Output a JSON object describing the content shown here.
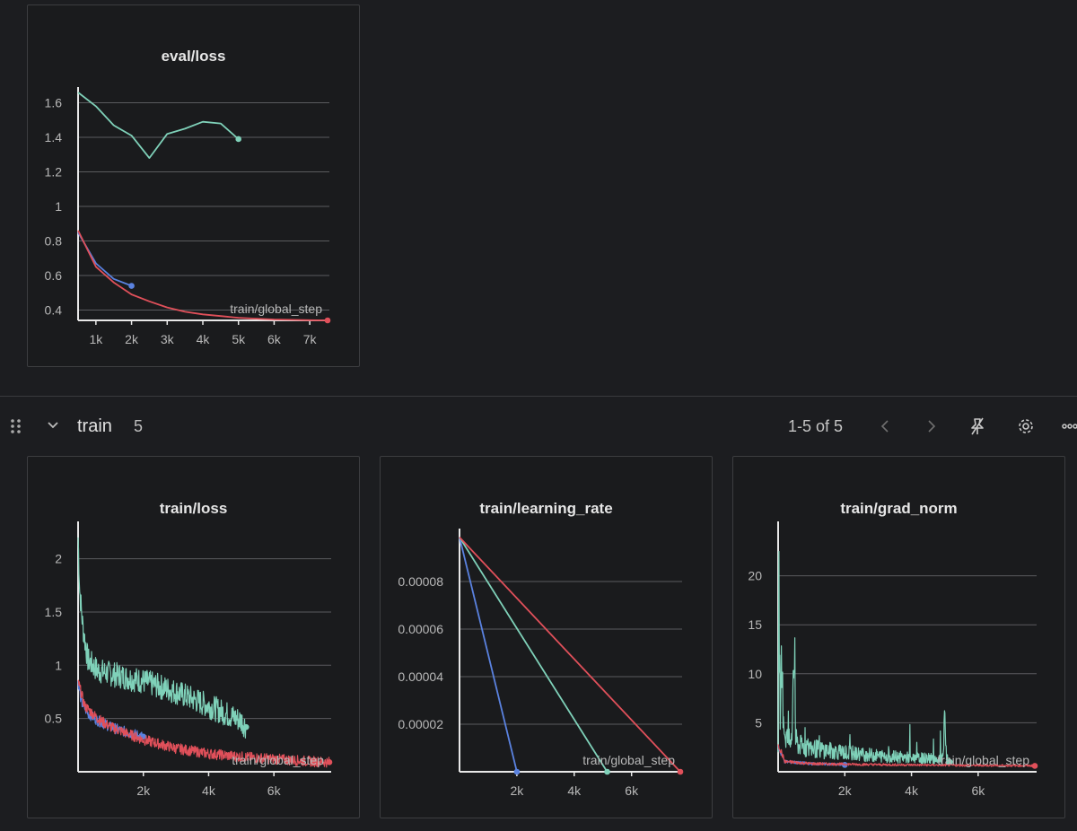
{
  "section": {
    "title": "train",
    "count": "5",
    "pagination": "1-5 of 5"
  },
  "colors": {
    "teal": "#7fd1b9",
    "blue": "#5a82e0",
    "red": "#e0505a"
  },
  "icons": [
    "drag-handle-icon",
    "chevron-down-icon",
    "chevron-left-icon",
    "chevron-right-icon",
    "pin-icon",
    "gear-icon",
    "more-icon"
  ],
  "chart_data": [
    {
      "type": "line",
      "title": "eval/loss",
      "xlabel": "train/global_step",
      "xlim": [
        500,
        7500
      ],
      "ylim": [
        0.34,
        1.66
      ],
      "xticks": [
        "1k",
        "2k",
        "3k",
        "4k",
        "5k",
        "6k",
        "7k"
      ],
      "yticks": [
        "0.4",
        "0.6",
        "0.8",
        "1",
        "1.2",
        "1.4",
        "1.6"
      ],
      "series": [
        {
          "color": "#7fd1b9",
          "x": [
            500,
            1000,
            1500,
            2000,
            2500,
            3000,
            3500,
            4000,
            4500,
            5000
          ],
          "y": [
            1.66,
            1.58,
            1.47,
            1.41,
            1.28,
            1.42,
            1.45,
            1.49,
            1.48,
            1.39
          ]
        },
        {
          "color": "#5a82e0",
          "x": [
            500,
            1000,
            1500,
            2000
          ],
          "y": [
            0.85,
            0.67,
            0.58,
            0.54
          ]
        },
        {
          "color": "#e0505a",
          "x": [
            500,
            1000,
            1500,
            2000,
            2500,
            3000,
            3500,
            4000,
            4500,
            5000,
            5500,
            6000,
            6500,
            7000,
            7500
          ],
          "y": [
            0.86,
            0.65,
            0.56,
            0.49,
            0.45,
            0.415,
            0.39,
            0.375,
            0.365,
            0.355,
            0.35,
            0.345,
            0.343,
            0.341,
            0.34
          ]
        }
      ]
    },
    {
      "type": "line",
      "title": "train/loss",
      "xlabel": "train/global_step",
      "xlim": [
        0,
        7700
      ],
      "ylim": [
        0,
        2.3
      ],
      "xticks": [
        "2k",
        "4k",
        "6k"
      ],
      "yticks": [
        "0.5",
        "1",
        "1.5",
        "2"
      ],
      "series": [
        {
          "color": "#7fd1b9",
          "x": [
            0,
            50,
            150,
            300,
            600,
            1000,
            2000,
            3000,
            4000,
            5000,
            5150
          ],
          "y": [
            2.2,
            1.7,
            1.35,
            1.05,
            0.95,
            0.92,
            0.85,
            0.75,
            0.62,
            0.48,
            0.42
          ]
        },
        {
          "color": "#5a82e0",
          "x": [
            0,
            100,
            300,
            600,
            1000,
            1500,
            2000
          ],
          "y": [
            0.85,
            0.65,
            0.55,
            0.48,
            0.42,
            0.37,
            0.33
          ]
        },
        {
          "color": "#e0505a",
          "x": [
            0,
            200,
            600,
            1000,
            2000,
            3000,
            4000,
            5000,
            6000,
            7000,
            7700
          ],
          "y": [
            0.85,
            0.62,
            0.5,
            0.42,
            0.3,
            0.22,
            0.17,
            0.14,
            0.12,
            0.1,
            0.09
          ]
        }
      ]
    },
    {
      "type": "line",
      "title": "train/learning_rate",
      "xlabel": "train/global_step",
      "xlim": [
        0,
        7700
      ],
      "ylim": [
        0,
        0.0001
      ],
      "xticks": [
        "2k",
        "4k",
        "6k"
      ],
      "yticks": [
        "0.00002",
        "0.00004",
        "0.00006",
        "0.00008"
      ],
      "series": [
        {
          "color": "#5a82e0",
          "x": [
            0,
            2000
          ],
          "y": [
            9.86e-05,
            0
          ]
        },
        {
          "color": "#7fd1b9",
          "x": [
            0,
            5150
          ],
          "y": [
            9.86e-05,
            0
          ]
        },
        {
          "color": "#e0505a",
          "x": [
            0,
            7700
          ],
          "y": [
            9.86e-05,
            0
          ]
        }
      ]
    },
    {
      "type": "line",
      "title": "train/grad_norm",
      "xlabel": "train/global_step",
      "xlim": [
        0,
        7700
      ],
      "ylim": [
        0,
        25
      ],
      "xticks": [
        "2k",
        "4k",
        "6k"
      ],
      "yticks": [
        "5",
        "10",
        "15",
        "20"
      ],
      "series": [
        {
          "color": "#7fd1b9",
          "x": [
            0,
            20,
            60,
            100,
            200,
            400,
            500,
            520,
            600,
            1000,
            2000,
            3000,
            4000,
            4950,
            5000,
            5050,
            5150
          ],
          "y": [
            2.0,
            24.0,
            3.0,
            9.0,
            3.5,
            2.5,
            12.5,
            3.0,
            2.5,
            2.2,
            1.8,
            1.5,
            1.3,
            1.2,
            5.3,
            1.2,
            1.0
          ]
        },
        {
          "color": "#5a82e0",
          "x": [
            0,
            200,
            1000,
            2000
          ],
          "y": [
            2.5,
            1.0,
            0.8,
            0.7
          ]
        },
        {
          "color": "#e0505a",
          "x": [
            0,
            200,
            1000,
            3000,
            5000,
            7700
          ],
          "y": [
            2.8,
            1.0,
            0.8,
            0.7,
            0.65,
            0.6
          ]
        }
      ]
    }
  ]
}
